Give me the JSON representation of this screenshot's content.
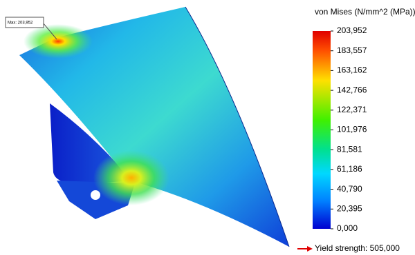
{
  "legend": {
    "title": "von Mises (N/mm^2 (MPa))",
    "ticks": [
      "203,952",
      "183,557",
      "163,162",
      "142,766",
      "122,371",
      "101,976",
      "81,581",
      "61,186",
      "40,790",
      "20,395",
      "0,000"
    ]
  },
  "yield_label": "Yield strength: 505,000",
  "max_label": "Max: 203,952"
}
